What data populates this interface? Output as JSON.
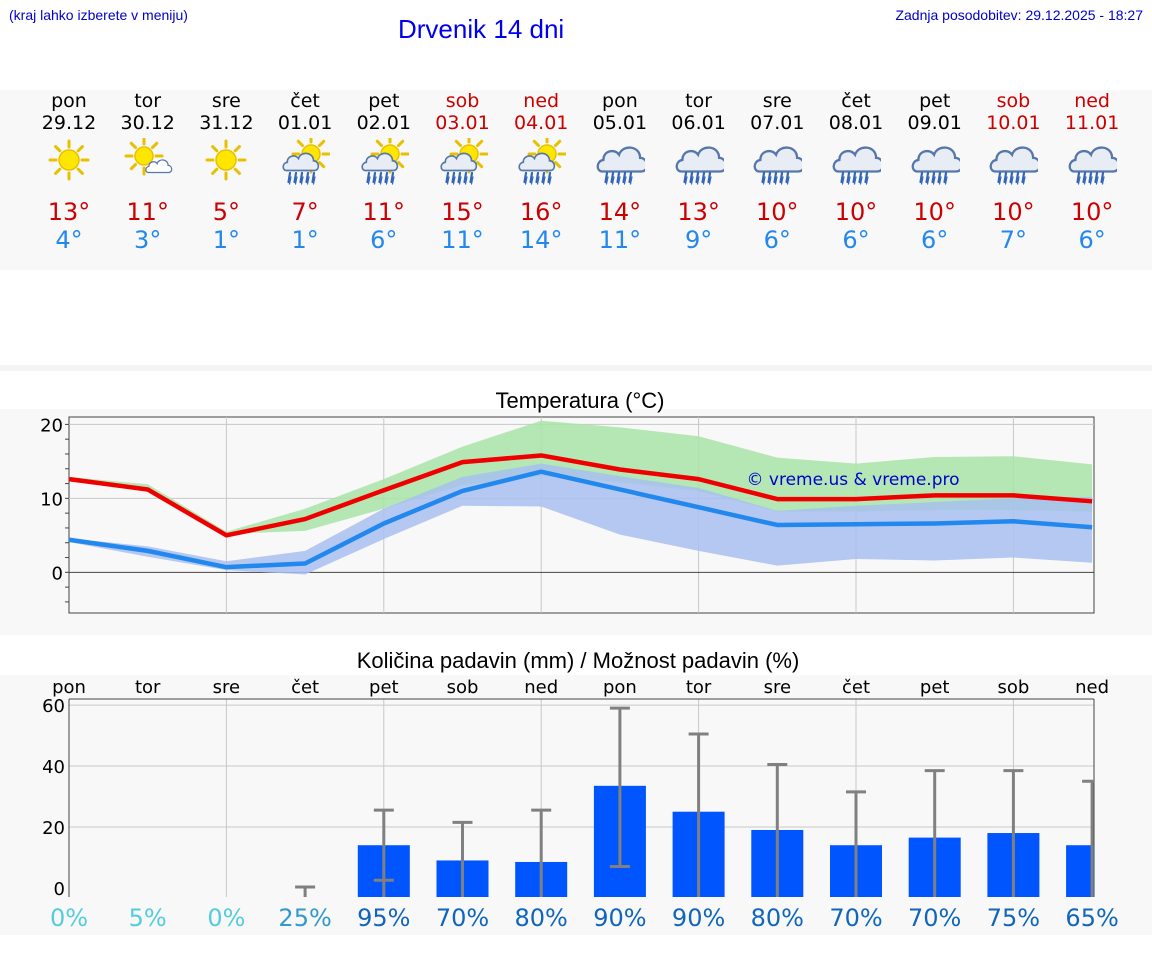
{
  "header": {
    "location_hint": "(kraj lahko izberete v meniju)",
    "title": "Drvenik 14 dni",
    "updated": "Zadnja posodobitev: 29.12.2025 - 18:27"
  },
  "days": [
    {
      "name": "pon",
      "date": "29.12",
      "icon": "sun-icon",
      "tmax": "13°",
      "tmin": "4°",
      "weekend": false
    },
    {
      "name": "tor",
      "date": "30.12",
      "icon": "sun-small-cloud-icon",
      "tmax": "11°",
      "tmin": "3°",
      "weekend": false
    },
    {
      "name": "sre",
      "date": "31.12",
      "icon": "sun-icon",
      "tmax": "5°",
      "tmin": "1°",
      "weekend": false
    },
    {
      "name": "čet",
      "date": "01.01",
      "icon": "sun-cloud-rain-icon",
      "tmax": "7°",
      "tmin": "1°",
      "weekend": false
    },
    {
      "name": "pet",
      "date": "02.01",
      "icon": "sun-cloud-rain-icon",
      "tmax": "11°",
      "tmin": "6°",
      "weekend": false
    },
    {
      "name": "sob",
      "date": "03.01",
      "icon": "sun-cloud-rain-icon",
      "tmax": "15°",
      "tmin": "11°",
      "weekend": true
    },
    {
      "name": "ned",
      "date": "04.01",
      "icon": "sun-cloud-rain-icon",
      "tmax": "16°",
      "tmin": "14°",
      "weekend": true
    },
    {
      "name": "pon",
      "date": "05.01",
      "icon": "cloud-rain-icon",
      "tmax": "14°",
      "tmin": "11°",
      "weekend": false
    },
    {
      "name": "tor",
      "date": "06.01",
      "icon": "cloud-rain-icon",
      "tmax": "13°",
      "tmin": "9°",
      "weekend": false
    },
    {
      "name": "sre",
      "date": "07.01",
      "icon": "cloud-rain-icon",
      "tmax": "10°",
      "tmin": "6°",
      "weekend": false
    },
    {
      "name": "čet",
      "date": "08.01",
      "icon": "cloud-rain-icon",
      "tmax": "10°",
      "tmin": "6°",
      "weekend": false
    },
    {
      "name": "pet",
      "date": "09.01",
      "icon": "cloud-rain-icon",
      "tmax": "10°",
      "tmin": "6°",
      "weekend": false
    },
    {
      "name": "sob",
      "date": "10.01",
      "icon": "cloud-rain-icon",
      "tmax": "10°",
      "tmin": "7°",
      "weekend": true
    },
    {
      "name": "ned",
      "date": "11.01",
      "icon": "cloud-rain-icon",
      "tmax": "10°",
      "tmin": "6°",
      "weekend": true
    }
  ],
  "colors": {
    "tmax_line": "#ee0000",
    "tmin_line": "#2288ee",
    "tmax_band": "#a8e4a8",
    "tmin_band": "#a8c0f0",
    "bar": "#0055ff",
    "errbar": "#808080",
    "watermark": "#0000cc",
    "pct_light": "#55ccdd",
    "pct_mid": "#3399cc",
    "pct_dark": "#1166bb"
  },
  "chart_data": [
    {
      "type": "line",
      "title": "Temperatura (°C)",
      "watermark": "© vreme.us & vreme.pro",
      "ylim": [
        -5.5,
        21
      ],
      "yticks": [
        0,
        10,
        20
      ],
      "x": [
        0,
        1,
        2,
        3,
        4,
        5,
        6,
        7,
        8,
        9,
        10,
        11,
        12,
        13
      ],
      "series": [
        {
          "name": "max",
          "values": [
            12.6,
            11.2,
            5.0,
            7.2,
            11.1,
            14.9,
            15.8,
            13.9,
            12.6,
            9.9,
            9.9,
            10.4,
            10.4,
            9.6
          ],
          "band_low": [
            12.4,
            11.0,
            5.2,
            5.6,
            8.6,
            11.8,
            13.0,
            12.2,
            11.0,
            8.2,
            8.2,
            8.4,
            8.4,
            8.2
          ],
          "band_high": [
            12.9,
            11.9,
            5.5,
            8.6,
            12.6,
            17.0,
            20.5,
            19.6,
            18.4,
            15.5,
            14.7,
            15.6,
            15.7,
            14.6
          ]
        },
        {
          "name": "min",
          "values": [
            4.4,
            2.9,
            0.7,
            1.2,
            6.6,
            11.0,
            13.6,
            11.2,
            8.8,
            6.4,
            6.5,
            6.6,
            6.9,
            6.1
          ],
          "band_low": [
            4.1,
            2.1,
            0.3,
            -0.3,
            4.5,
            9.0,
            8.9,
            5.1,
            2.9,
            0.9,
            1.8,
            1.6,
            2.0,
            1.3
          ],
          "band_high": [
            4.6,
            3.5,
            1.5,
            2.9,
            8.6,
            12.9,
            14.7,
            13.0,
            11.4,
            8.3,
            9.0,
            9.5,
            10.0,
            10.2
          ]
        }
      ]
    },
    {
      "type": "bar",
      "title": "Količina padavin (mm) / Možnost padavin (%)",
      "ylim": [
        -3,
        62
      ],
      "yticks": [
        0,
        20,
        40,
        60
      ],
      "categories": [
        "pon",
        "tor",
        "sre",
        "čet",
        "pet",
        "sob",
        "ned",
        "pon",
        "tor",
        "sre",
        "čet",
        "pet",
        "sob",
        "ned"
      ],
      "values": [
        0,
        0,
        0,
        0,
        14,
        9,
        8.5,
        33.5,
        25,
        19,
        14,
        16.5,
        18,
        14
      ],
      "err_low": [
        0,
        0,
        0,
        0,
        0,
        0,
        0,
        7,
        0,
        0,
        0,
        0,
        0,
        0
      ],
      "err_high": [
        0,
        0,
        0,
        0.3,
        25.5,
        21.5,
        25.5,
        59,
        50.5,
        40.5,
        31.5,
        38.5,
        38.5,
        35
      ],
      "probability": [
        "0%",
        "5%",
        "0%",
        "25%",
        "95%",
        "70%",
        "80%",
        "90%",
        "90%",
        "80%",
        "70%",
        "70%",
        "75%",
        "65%"
      ]
    }
  ]
}
